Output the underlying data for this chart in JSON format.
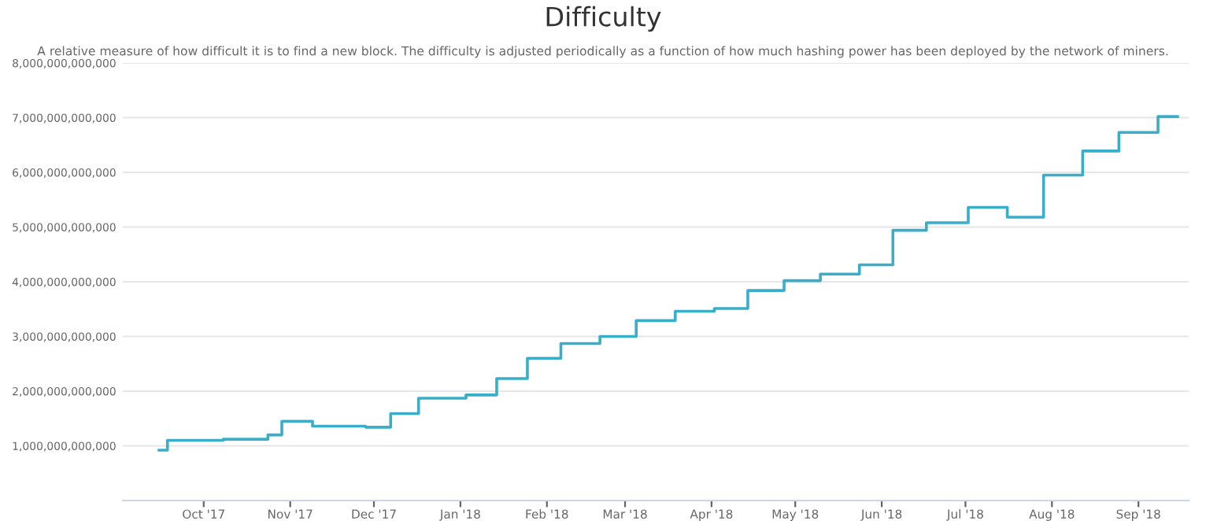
{
  "chart_data": {
    "type": "step",
    "title": "Difficulty",
    "subtitle": "A relative measure of how difficult it is to find a new block. The difficulty is adjusted periodically as a function of how much hashing power has been deployed by the network of miners.",
    "x": [
      "2017-09-15",
      "2017-09-18",
      "2017-10-08",
      "2017-10-24",
      "2017-10-29",
      "2017-11-09",
      "2017-11-28",
      "2017-12-07",
      "2017-12-17",
      "2018-01-03",
      "2018-01-14",
      "2018-01-25",
      "2018-02-06",
      "2018-02-20",
      "2018-03-05",
      "2018-03-19",
      "2018-04-02",
      "2018-04-14",
      "2018-04-27",
      "2018-05-10",
      "2018-05-24",
      "2018-06-05",
      "2018-06-17",
      "2018-07-02",
      "2018-07-16",
      "2018-07-29",
      "2018-08-12",
      "2018-08-25",
      "2018-09-08",
      "2018-09-15"
    ],
    "series": [
      {
        "color": "#3aaec9",
        "values": [
          920000000000,
          1100000000000,
          1120000000000,
          1200000000000,
          1450000000000,
          1360000000000,
          1340000000000,
          1590000000000,
          1870000000000,
          1930000000000,
          2230000000000,
          2600000000000,
          2870000000000,
          3000000000000,
          3290000000000,
          3460000000000,
          3510000000000,
          3840000000000,
          4020000000000,
          4140000000000,
          4310000000000,
          4940000000000,
          5080000000000,
          5360000000000,
          5180000000000,
          5950000000000,
          6390000000000,
          6730000000000,
          7020000000000,
          7020000000000
        ]
      }
    ],
    "xlim": [
      "2017-09-02",
      "2018-09-19"
    ],
    "xticks": [
      {
        "value": "2017-10-01",
        "label": "Oct '17"
      },
      {
        "value": "2017-11-01",
        "label": "Nov '17"
      },
      {
        "value": "2017-12-01",
        "label": "Dec '17"
      },
      {
        "value": "2018-01-01",
        "label": "Jan '18"
      },
      {
        "value": "2018-02-01",
        "label": "Feb '18"
      },
      {
        "value": "2018-03-01",
        "label": "Mar '18"
      },
      {
        "value": "2018-04-01",
        "label": "Apr '18"
      },
      {
        "value": "2018-05-01",
        "label": "May '18"
      },
      {
        "value": "2018-06-01",
        "label": "Jun '18"
      },
      {
        "value": "2018-07-01",
        "label": "Jul '18"
      },
      {
        "value": "2018-08-01",
        "label": "Aug '18"
      },
      {
        "value": "2018-09-01",
        "label": "Sep '18"
      }
    ],
    "ylim": [
      0,
      8000000000000
    ],
    "yticks": [
      {
        "value": 1000000000000,
        "label": "1,000,000,000,000"
      },
      {
        "value": 2000000000000,
        "label": "2,000,000,000,000"
      },
      {
        "value": 3000000000000,
        "label": "3,000,000,000,000"
      },
      {
        "value": 4000000000000,
        "label": "4,000,000,000,000"
      },
      {
        "value": 5000000000000,
        "label": "5,000,000,000,000"
      },
      {
        "value": 6000000000000,
        "label": "6,000,000,000,000"
      },
      {
        "value": 7000000000000,
        "label": "7,000,000,000,000"
      },
      {
        "value": 8000000000000,
        "label": "8,000,000,000,000"
      }
    ],
    "grid": "y",
    "legend": false
  }
}
